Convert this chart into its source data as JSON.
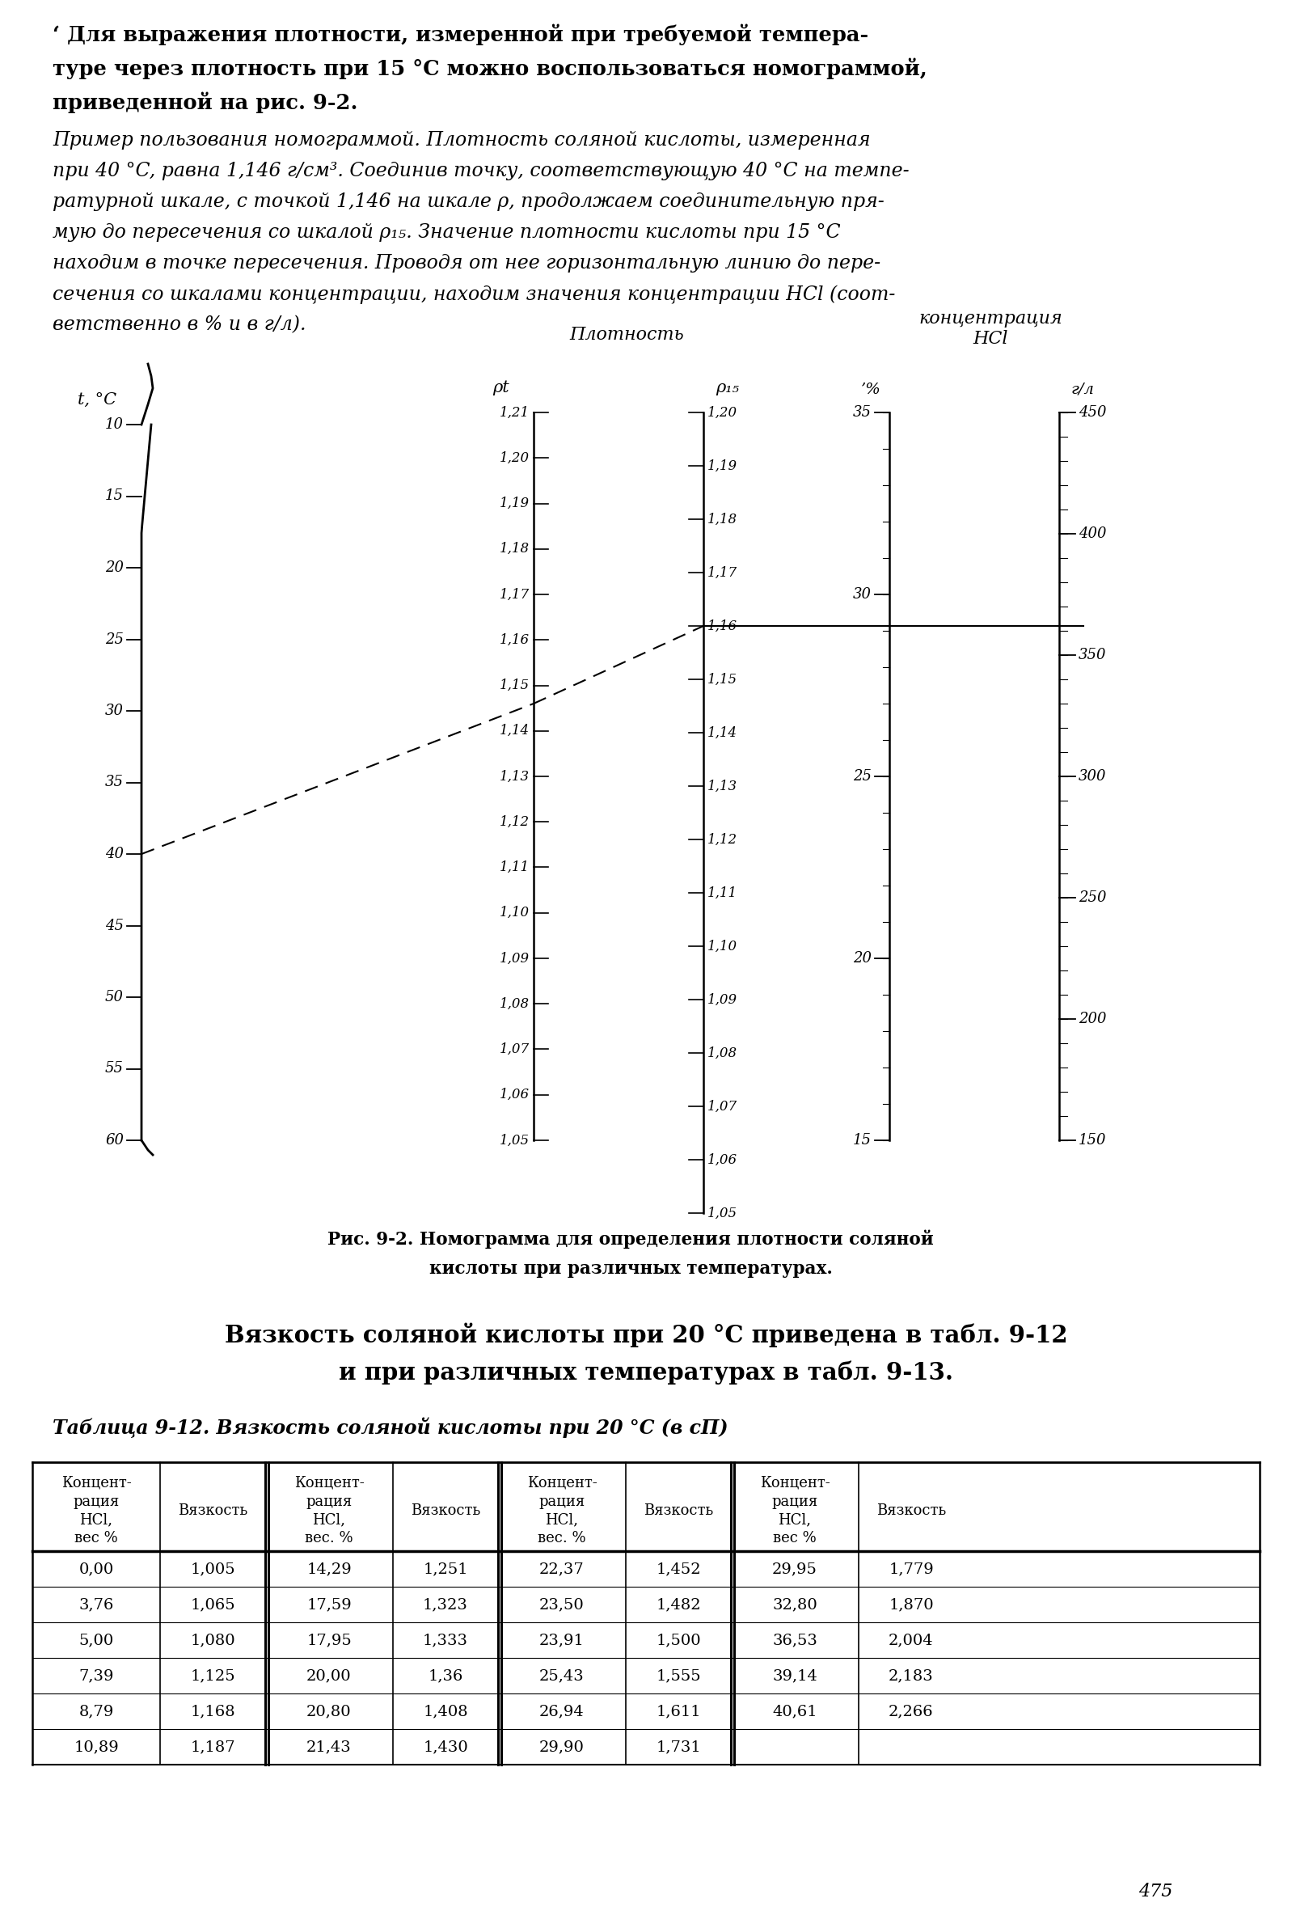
{
  "bg_color": "#ffffff",
  "page_width": 15.98,
  "page_height": 23.84,
  "caption_text": "Рис. 9-2. Номограмма для определения плотности соляной",
  "caption_text2": "кислоты при различных температурах.",
  "viscosity_title": "Вязкость соляной кислоты при 20 °C приведена в табл. 9-12",
  "viscosity_title2": "и при различных температурах в табл. 9-13.",
  "table_title": "Таблица 9-12. Вязкость соляной кислоты при 20 °C (в сП)",
  "table_data": [
    [
      "0,00",
      "1,005",
      "14,29",
      "1,251",
      "22,37",
      "1,452",
      "29,95",
      "1,779"
    ],
    [
      "3,76",
      "1,065",
      "17,59",
      "1,323",
      "23,50",
      "1,482",
      "32,80",
      "1,870"
    ],
    [
      "5,00",
      "1,080",
      "17,95",
      "1,333",
      "23,91",
      "1,500",
      "36,53",
      "2,004"
    ],
    [
      "7,39",
      "1,125",
      "20,00",
      "1,36",
      "25,43",
      "1,555",
      "39,14",
      "2,183"
    ],
    [
      "8,79",
      "1,168",
      "20,80",
      "1,408",
      "26,94",
      "1,611",
      "40,61",
      "2,266"
    ],
    [
      "10,89",
      "1,187",
      "21,43",
      "1,430",
      "29,90",
      "1,731",
      "",
      ""
    ]
  ],
  "page_num": "475"
}
